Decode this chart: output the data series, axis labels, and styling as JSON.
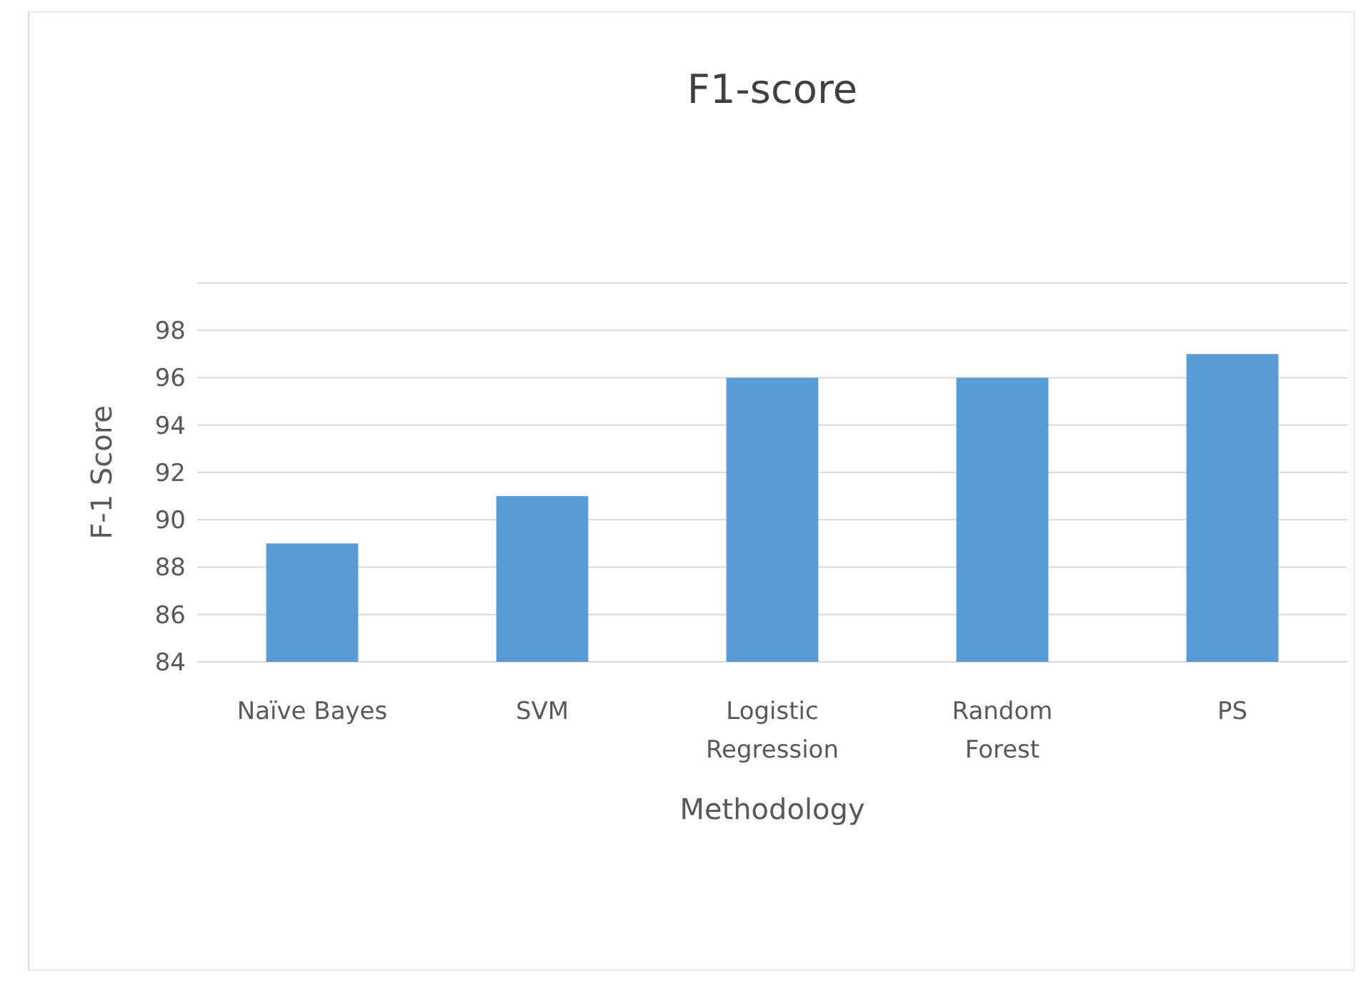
{
  "chart_data": {
    "type": "bar",
    "title": "F1-score",
    "xlabel": "Methodology",
    "ylabel": "F-1 Score",
    "categories": [
      "Naïve Bayes",
      "SVM",
      "Logistic Regression",
      "Random Forest",
      "PS"
    ],
    "values": [
      89,
      91,
      96,
      96,
      97
    ],
    "color": "#5b9bd5",
    "ylim": [
      84,
      100
    ],
    "yticks": [
      84,
      86,
      88,
      90,
      92,
      94,
      96,
      98,
      {
        "value": 100,
        "label": null
      }
    ],
    "grid": "y"
  }
}
